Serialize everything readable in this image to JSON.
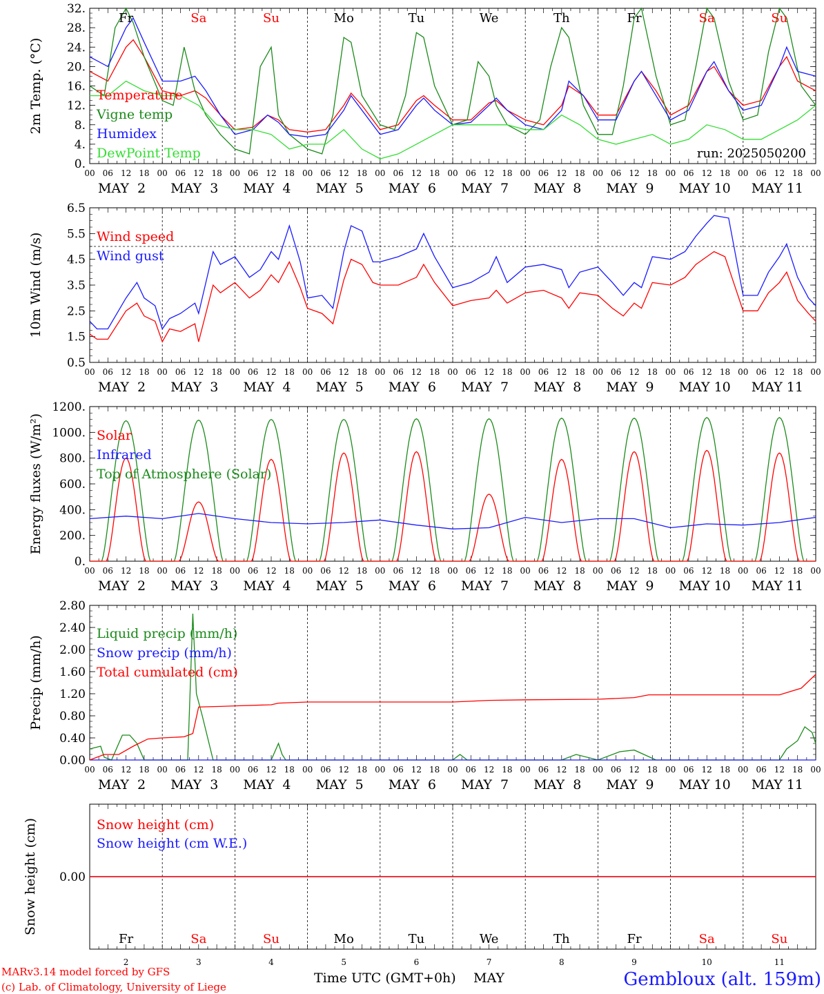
{
  "colors": {
    "red": "#ff0000",
    "green": "#1a8a1a",
    "blue": "#1a1aff",
    "lightgreen": "#33dd33",
    "black": "#000000"
  },
  "weekdays": [
    "Fr",
    "Sa",
    "Su",
    "Mo",
    "Tu",
    "We",
    "Th",
    "Fr",
    "Sa",
    "Su"
  ],
  "weekend_flags": [
    false,
    true,
    true,
    false,
    false,
    false,
    false,
    false,
    true,
    true
  ],
  "day_numbers": [
    "2",
    "3",
    "4",
    "5",
    "6",
    "7",
    "8",
    "9",
    "10",
    "11"
  ],
  "date_labels": [
    "MAY  2",
    "MAY  3",
    "MAY  4",
    "MAY  5",
    "MAY  6",
    "MAY  7",
    "MAY  8",
    "MAY  9",
    "MAY 10",
    "MAY 11"
  ],
  "hour_ticks": [
    "00",
    "06",
    "12",
    "18"
  ],
  "run_label": "run: 2025050200",
  "footer": {
    "model": "MARv3.14 model forced by GFS",
    "copyright": "(c) Lab. of Climatology, University of Liege",
    "time_axis": "Time UTC (GMT+0h)",
    "month": "MAY",
    "location": "Gembloux (alt. 159m)"
  },
  "chart_data": [
    {
      "type": "line",
      "ylabel": "2m Temp. (°C)",
      "ylim": [
        0,
        32
      ],
      "yticks": [
        "0.",
        "4.",
        "8.",
        "12.",
        "16.",
        "20.",
        "24.",
        "28.",
        "32."
      ],
      "x_units": "days since MAY 2 00 UTC",
      "series": [
        {
          "name": "Temperature",
          "color": "#ff0000",
          "x": [
            0,
            0.25,
            0.5,
            0.6,
            0.75,
            1,
            1.25,
            1.45,
            1.6,
            1.8,
            2,
            2.25,
            2.45,
            2.6,
            2.75,
            3,
            3.25,
            3.5,
            3.6,
            3.75,
            4,
            4.25,
            4.5,
            4.6,
            4.75,
            5,
            5.25,
            5.5,
            5.6,
            5.75,
            6,
            6.25,
            6.5,
            6.6,
            6.8,
            7,
            7.25,
            7.5,
            7.6,
            7.8,
            8,
            8.25,
            8.5,
            8.6,
            8.8,
            9,
            9.25,
            9.5,
            9.6,
            9.75,
            10
          ],
          "y": [
            19,
            17,
            24,
            25.5,
            22,
            15,
            14,
            15,
            13.5,
            10,
            7,
            7.5,
            10,
            9,
            7,
            6.5,
            7,
            12,
            14.5,
            12,
            7,
            8,
            13,
            14,
            12,
            9,
            9,
            12.5,
            13,
            11,
            9,
            8,
            12,
            16,
            14,
            10,
            10,
            17,
            19,
            15,
            10,
            12,
            19,
            20,
            15,
            12,
            13,
            20,
            22,
            17,
            15
          ]
        },
        {
          "name": "Vigne temp",
          "color": "#1a8a1a",
          "x": [
            0,
            0.2,
            0.35,
            0.5,
            0.6,
            0.75,
            1,
            1.15,
            1.3,
            1.45,
            1.6,
            1.8,
            2,
            2.2,
            2.35,
            2.5,
            2.6,
            2.75,
            3,
            3.2,
            3.35,
            3.5,
            3.6,
            3.75,
            4,
            4.2,
            4.35,
            4.5,
            4.6,
            4.75,
            5,
            5.2,
            5.35,
            5.5,
            5.6,
            5.75,
            6,
            6.2,
            6.35,
            6.5,
            6.6,
            6.8,
            7,
            7.2,
            7.35,
            7.5,
            7.6,
            7.8,
            8,
            8.2,
            8.35,
            8.5,
            8.6,
            8.8,
            9,
            9.2,
            9.35,
            9.5,
            9.6,
            9.8,
            10
          ],
          "y": [
            16,
            14,
            28,
            32,
            29,
            22,
            13,
            12,
            24,
            15,
            10,
            6,
            3,
            2,
            20,
            24,
            10,
            6,
            3,
            2,
            10,
            26,
            25,
            14,
            8,
            7,
            14,
            27,
            26,
            16,
            8,
            9,
            21,
            18,
            12,
            8,
            6,
            9,
            20,
            28,
            26,
            12,
            6,
            6,
            16,
            30,
            32,
            18,
            8,
            9,
            20,
            32,
            30,
            17,
            9,
            10,
            23,
            32,
            30,
            16,
            12
          ]
        },
        {
          "name": "Humidex",
          "color": "#1a1aff",
          "x": [
            0,
            0.25,
            0.5,
            0.6,
            0.75,
            1,
            1.25,
            1.45,
            1.6,
            1.8,
            2,
            2.25,
            2.45,
            2.6,
            2.75,
            3,
            3.25,
            3.5,
            3.6,
            3.75,
            4,
            4.25,
            4.5,
            4.6,
            4.75,
            5,
            5.25,
            5.5,
            5.6,
            5.75,
            6,
            6.25,
            6.5,
            6.6,
            6.8,
            7,
            7.25,
            7.5,
            7.6,
            7.8,
            8,
            8.25,
            8.5,
            8.6,
            8.8,
            9,
            9.25,
            9.5,
            9.6,
            9.75,
            10
          ],
          "y": [
            22,
            20,
            28,
            30,
            25,
            17,
            17,
            18,
            15,
            10,
            6,
            7,
            10,
            8.5,
            6,
            5.5,
            6,
            11,
            14,
            11,
            6,
            7,
            12,
            13.5,
            11,
            8,
            8.5,
            12,
            13.5,
            11,
            8,
            7,
            11,
            17,
            14,
            9,
            9,
            17,
            19,
            14,
            9,
            11,
            19,
            21,
            15,
            11,
            12,
            20,
            24,
            19,
            18
          ]
        },
        {
          "name": "DewPoint Temp",
          "color": "#33dd33",
          "x": [
            0,
            0.25,
            0.5,
            0.75,
            1,
            1.25,
            1.5,
            1.75,
            2,
            2.25,
            2.5,
            2.75,
            3,
            3.25,
            3.5,
            3.75,
            4,
            4.25,
            4.5,
            4.75,
            5,
            5.25,
            5.5,
            5.75,
            6,
            6.25,
            6.5,
            6.75,
            7,
            7.25,
            7.5,
            7.75,
            8,
            8.25,
            8.5,
            8.75,
            9,
            9.25,
            9.5,
            9.75,
            10
          ],
          "y": [
            14,
            14,
            17,
            15,
            14,
            14,
            12,
            8,
            7,
            7,
            6,
            3,
            4,
            4,
            7,
            3,
            1,
            2,
            4,
            6,
            8,
            8,
            8,
            8,
            7,
            7,
            10,
            8,
            5,
            4,
            5,
            6,
            4,
            5,
            8,
            7,
            5,
            5,
            7,
            9,
            12
          ]
        }
      ]
    },
    {
      "type": "line",
      "ylabel": "10m Wind (m/s)",
      "ylim": [
        0.5,
        6.5
      ],
      "yticks": [
        "0.5",
        "1.5",
        "2.5",
        "3.5",
        "4.5",
        "5.5",
        "6.5"
      ],
      "reference_line": 5.0,
      "x_units": "days since MAY 2 00 UTC",
      "series": [
        {
          "name": "Wind speed",
          "color": "#ff0000",
          "x": [
            0,
            0.1,
            0.25,
            0.5,
            0.65,
            0.75,
            0.9,
            1,
            1.1,
            1.25,
            1.45,
            1.5,
            1.7,
            1.8,
            2,
            2.2,
            2.35,
            2.5,
            2.6,
            2.75,
            2.9,
            3,
            3.2,
            3.35,
            3.5,
            3.6,
            3.75,
            3.9,
            4,
            4.25,
            4.5,
            4.6,
            4.75,
            5,
            5.25,
            5.5,
            5.6,
            5.75,
            6,
            6.25,
            6.5,
            6.6,
            6.75,
            7,
            7.2,
            7.35,
            7.5,
            7.6,
            7.75,
            8,
            8.2,
            8.35,
            8.5,
            8.6,
            8.75,
            9,
            9.2,
            9.35,
            9.5,
            9.6,
            9.75,
            9.9,
            10
          ],
          "y": [
            1.6,
            1.4,
            1.4,
            2.5,
            2.8,
            2.3,
            2.1,
            1.3,
            1.8,
            1.7,
            2.0,
            1.3,
            3.5,
            3.2,
            3.6,
            3.0,
            3.3,
            3.9,
            3.6,
            4.4,
            3.4,
            2.6,
            2.4,
            2.0,
            3.7,
            4.5,
            4.3,
            3.6,
            3.5,
            3.5,
            3.8,
            4.3,
            3.6,
            2.7,
            2.9,
            3.0,
            3.3,
            2.8,
            3.2,
            3.3,
            3.0,
            2.6,
            3.2,
            3.1,
            2.6,
            2.3,
            2.8,
            2.6,
            3.6,
            3.5,
            3.8,
            4.3,
            4.6,
            4.8,
            4.6,
            2.5,
            2.5,
            3.2,
            3.6,
            4.0,
            2.9,
            2.4,
            2.1
          ]
        },
        {
          "name": "Wind gust",
          "color": "#1a1aff",
          "x": [
            0,
            0.1,
            0.25,
            0.5,
            0.65,
            0.75,
            0.9,
            1,
            1.1,
            1.25,
            1.45,
            1.5,
            1.7,
            1.8,
            2,
            2.2,
            2.35,
            2.5,
            2.6,
            2.75,
            2.9,
            3,
            3.2,
            3.35,
            3.5,
            3.6,
            3.75,
            3.9,
            4,
            4.25,
            4.5,
            4.6,
            4.75,
            5,
            5.25,
            5.5,
            5.6,
            5.75,
            6,
            6.25,
            6.5,
            6.6,
            6.75,
            7,
            7.2,
            7.35,
            7.5,
            7.6,
            7.75,
            8,
            8.2,
            8.35,
            8.5,
            8.6,
            8.8,
            9,
            9.2,
            9.35,
            9.5,
            9.6,
            9.75,
            9.9,
            10
          ],
          "y": [
            2.1,
            1.8,
            1.8,
            3.0,
            3.6,
            3.0,
            2.7,
            1.8,
            2.2,
            2.4,
            2.8,
            2.4,
            4.8,
            4.3,
            4.6,
            3.8,
            4.1,
            4.8,
            4.5,
            5.8,
            4.4,
            3.0,
            3.1,
            2.6,
            4.8,
            5.8,
            5.6,
            4.4,
            4.4,
            4.6,
            4.9,
            5.5,
            4.6,
            3.4,
            3.6,
            4.0,
            4.6,
            3.6,
            4.2,
            4.3,
            4.1,
            3.4,
            4.0,
            4.2,
            3.6,
            3.1,
            3.6,
            3.4,
            4.6,
            4.5,
            4.8,
            5.4,
            5.9,
            6.2,
            6.1,
            3.1,
            3.1,
            4.0,
            4.6,
            5.1,
            3.8,
            3.0,
            2.7
          ]
        }
      ]
    },
    {
      "type": "line",
      "ylabel": "Energy fluxes (W/m²)",
      "ylim": [
        0,
        1200
      ],
      "yticks": [
        "0.",
        "200.",
        "400.",
        "600.",
        "800.",
        "1000.",
        "1200."
      ],
      "x_units": "days since MAY 2 00 UTC",
      "series": [
        {
          "name": "Solar",
          "color": "#ff0000",
          "peaks": [
            800,
            460,
            790,
            840,
            850,
            520,
            790,
            850,
            860,
            840
          ]
        },
        {
          "name": "Infrared",
          "color": "#1a1aff",
          "x": [
            0,
            0.5,
            1,
            1.5,
            2,
            2.5,
            3,
            3.5,
            4,
            4.5,
            5,
            5.5,
            6,
            6.5,
            7,
            7.5,
            8,
            8.5,
            9,
            9.5,
            10
          ],
          "y": [
            330,
            350,
            330,
            370,
            330,
            300,
            290,
            300,
            320,
            280,
            250,
            260,
            340,
            300,
            330,
            330,
            260,
            290,
            280,
            300,
            340
          ]
        },
        {
          "name": "Top of Atmosphere (Solar)",
          "color": "#1a8a1a",
          "peaks": [
            1090,
            1095,
            1100,
            1100,
            1105,
            1105,
            1110,
            1110,
            1115,
            1115
          ]
        }
      ]
    },
    {
      "type": "line",
      "ylabel": "Precip (mm/h)",
      "ylim": [
        0,
        2.8
      ],
      "yticks": [
        "0.00",
        "0.40",
        "0.80",
        "1.20",
        "1.60",
        "2.00",
        "2.40",
        "2.80"
      ],
      "x_units": "days since MAY 2 00 UTC",
      "series": [
        {
          "name": "Liquid precip (mm/h)",
          "color": "#1a8a1a",
          "x": [
            0,
            0.15,
            0.2,
            0.3,
            0.45,
            0.55,
            0.65,
            0.75,
            1,
            1.35,
            1.42,
            1.47,
            1.55,
            1.7,
            2,
            2.5,
            2.6,
            2.65,
            2.7,
            3,
            5,
            5.1,
            5.2,
            6.5,
            6.7,
            7,
            7.3,
            7.5,
            7.8,
            8,
            9.5,
            9.6,
            9.75,
            9.85,
            9.95,
            10
          ],
          "y": [
            0.2,
            0.25,
            0.05,
            0,
            0.45,
            0.45,
            0.3,
            0,
            0,
            0,
            2.65,
            1.2,
            0.8,
            0,
            0,
            0,
            0.3,
            0.1,
            0,
            0,
            0,
            0.1,
            0,
            0,
            0.1,
            0,
            0.15,
            0.18,
            0,
            0,
            0,
            0.2,
            0.35,
            0.6,
            0.5,
            0.3
          ]
        },
        {
          "name": "Snow precip (mm/h)",
          "color": "#1a1aff",
          "x": [
            0,
            10
          ],
          "y": [
            0,
            0
          ]
        },
        {
          "name": "Total cumulated (cm)",
          "color": "#ff0000",
          "x": [
            0,
            0.2,
            0.4,
            0.6,
            0.8,
            1,
            1.3,
            1.42,
            1.5,
            1.8,
            2,
            2.5,
            2.6,
            3,
            4,
            5,
            5.5,
            6,
            7,
            7.5,
            7.7,
            8,
            9,
            9.5,
            9.8,
            10
          ],
          "y": [
            0,
            0.1,
            0.1,
            0.25,
            0.38,
            0.4,
            0.42,
            0.48,
            0.96,
            0.97,
            0.98,
            1.0,
            1.03,
            1.05,
            1.05,
            1.05,
            1.08,
            1.09,
            1.1,
            1.13,
            1.18,
            1.18,
            1.18,
            1.18,
            1.3,
            1.55
          ]
        }
      ]
    },
    {
      "type": "line",
      "ylabel": "Snow height (cm)",
      "yticks": [
        "0.00"
      ],
      "x_units": "days since MAY 2 00 UTC",
      "series": [
        {
          "name": "Snow height (cm)",
          "color": "#ff0000",
          "x": [
            0,
            10
          ],
          "y": [
            0,
            0
          ]
        },
        {
          "name": "Snow height (cm W.E.)",
          "color": "#1a1aff",
          "x": [
            0,
            10
          ],
          "y": [
            0,
            0
          ]
        }
      ]
    }
  ]
}
